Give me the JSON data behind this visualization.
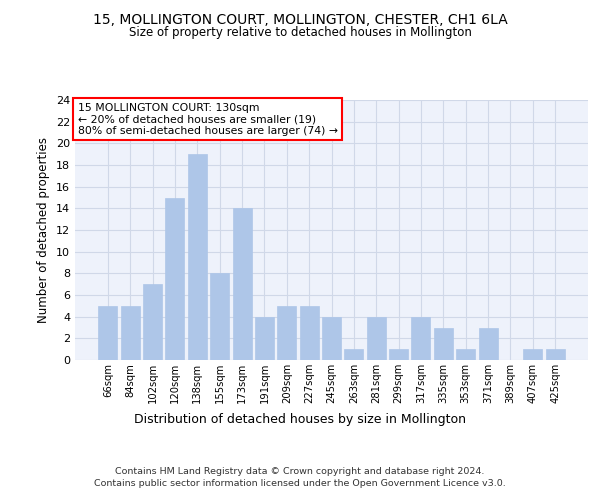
{
  "title1": "15, MOLLINGTON COURT, MOLLINGTON, CHESTER, CH1 6LA",
  "title2": "Size of property relative to detached houses in Mollington",
  "xlabel": "Distribution of detached houses by size in Mollington",
  "ylabel": "Number of detached properties",
  "categories": [
    "66sqm",
    "84sqm",
    "102sqm",
    "120sqm",
    "138sqm",
    "155sqm",
    "173sqm",
    "191sqm",
    "209sqm",
    "227sqm",
    "245sqm",
    "263sqm",
    "281sqm",
    "299sqm",
    "317sqm",
    "335sqm",
    "353sqm",
    "371sqm",
    "389sqm",
    "407sqm",
    "425sqm"
  ],
  "values": [
    5,
    5,
    7,
    15,
    19,
    8,
    14,
    4,
    5,
    5,
    4,
    1,
    4,
    1,
    4,
    3,
    1,
    3,
    0,
    1,
    1
  ],
  "bar_color": "#aec6e8",
  "bar_edge_color": "#aec6e8",
  "ylim": [
    0,
    24
  ],
  "yticks": [
    0,
    2,
    4,
    6,
    8,
    10,
    12,
    14,
    16,
    18,
    20,
    22,
    24
  ],
  "annotation_box_text": "15 MOLLINGTON COURT: 130sqm\n← 20% of detached houses are smaller (19)\n80% of semi-detached houses are larger (74) →",
  "annotation_box_color": "#ff0000",
  "annotation_box_fill": "#ffffff",
  "grid_color": "#d0d8e8",
  "background_color": "#eef2fb",
  "footer_line1": "Contains HM Land Registry data © Crown copyright and database right 2024.",
  "footer_line2": "Contains public sector information licensed under the Open Government Licence v3.0."
}
